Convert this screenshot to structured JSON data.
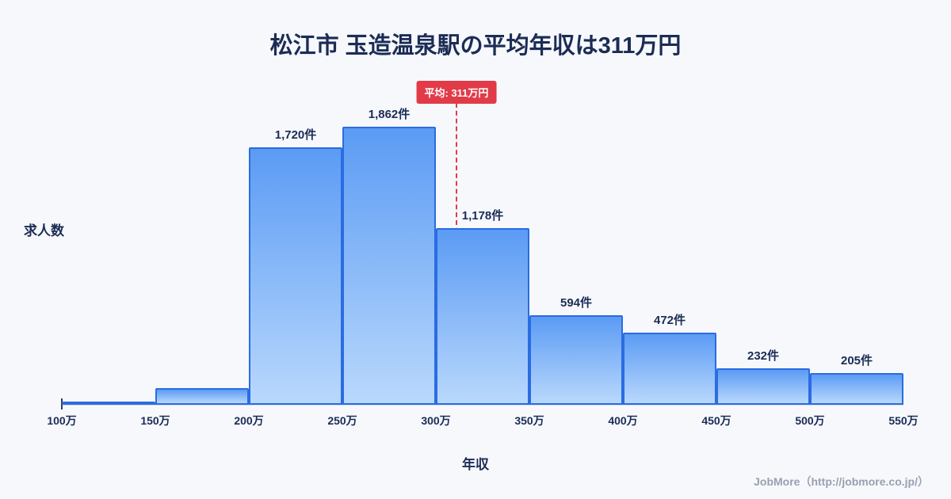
{
  "title": "松江市 玉造温泉駅の平均年収は311万円",
  "footer_credit": "JobMore（http://jobmore.co.jp/）",
  "colors": {
    "background": "#f6f8fc",
    "title_navy": "#1b2c55",
    "bar_top": "#5b9bf4",
    "bar_bottom": "#b9d8fc",
    "bar_border": "#2a6ce2",
    "average_red": "#e23b48",
    "footer_gray": "#98a0b0"
  },
  "chart_data": {
    "type": "bar",
    "title": "松江市 玉造温泉駅の平均年収は311万円",
    "xlabel": "年収",
    "ylabel": "求人数",
    "bin_edges": [
      100,
      150,
      200,
      250,
      300,
      350,
      400,
      450,
      500,
      550
    ],
    "x_tick_labels": [
      "100万",
      "150万",
      "200万",
      "250万",
      "300万",
      "350万",
      "400万",
      "450万",
      "500万",
      "550万"
    ],
    "values": [
      10,
      100,
      1720,
      1862,
      1178,
      594,
      472,
      232,
      205
    ],
    "bar_labels": [
      "",
      "",
      "1,720件",
      "1,862件",
      "1,178件",
      "594件",
      "472件",
      "232件",
      "205件"
    ],
    "average_line": {
      "value": 311,
      "label": "平均: 311万円"
    },
    "ylim": [
      0,
      2200
    ],
    "grid": false,
    "legend": false
  }
}
